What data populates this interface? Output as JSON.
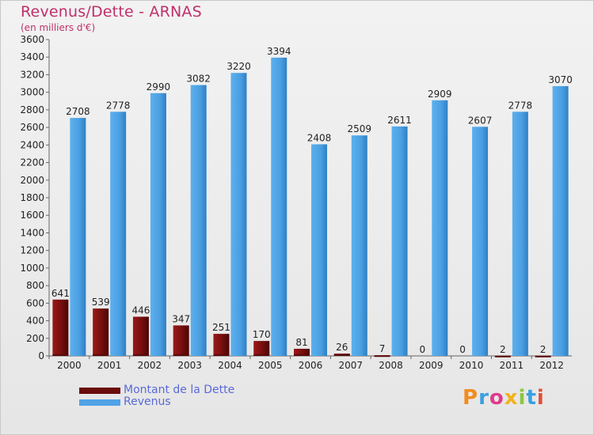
{
  "chart_data": {
    "type": "bar",
    "title": "Revenus/Dette - ARNAS",
    "subtitle": "(en milliers d'€)",
    "categories": [
      "2000",
      "2001",
      "2002",
      "2003",
      "2004",
      "2005",
      "2006",
      "2007",
      "2008",
      "2009",
      "2010",
      "2011",
      "2012"
    ],
    "series": [
      {
        "name": "Montant de la Dette",
        "color": "#7a0f0f",
        "values": [
          641,
          539,
          446,
          347,
          251,
          170,
          81,
          26,
          7,
          0,
          0,
          2,
          2
        ]
      },
      {
        "name": "Revenus",
        "color": "#4fa3e6",
        "values": [
          2708,
          2778,
          2990,
          3082,
          3220,
          3394,
          2408,
          2509,
          2611,
          2909,
          2607,
          2778,
          3070
        ]
      }
    ],
    "ylim": [
      0,
      3600
    ],
    "yticks": [
      0,
      200,
      400,
      600,
      800,
      1000,
      1200,
      1400,
      1600,
      1800,
      2000,
      2200,
      2400,
      2600,
      2800,
      3000,
      3200,
      3400,
      3600
    ],
    "grid": false,
    "legend": "bottom-left"
  },
  "logo": {
    "text": "Proxiti",
    "letters": [
      "P",
      "r",
      "o",
      "x",
      "i",
      "t",
      "i"
    ],
    "colors": [
      "#f28c1e",
      "#3aa0e0",
      "#e03a8c",
      "#f2b21e",
      "#8cc63e",
      "#3aa0e0",
      "#e0503a"
    ]
  }
}
